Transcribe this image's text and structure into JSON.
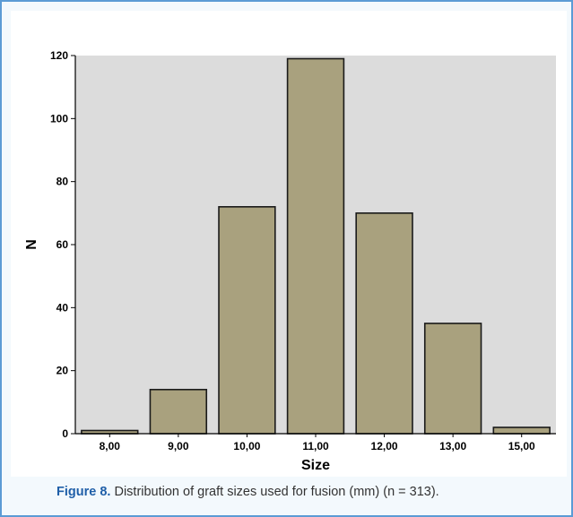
{
  "chart_data": {
    "type": "bar",
    "categories": [
      "8,00",
      "9,00",
      "10,00",
      "11,00",
      "12,00",
      "13,00",
      "15,00"
    ],
    "values": [
      1,
      14,
      72,
      119,
      70,
      35,
      2
    ],
    "xlabel": "Size",
    "ylabel": "N",
    "ylim": [
      0,
      120
    ],
    "yticks": [
      0,
      20,
      40,
      60,
      80,
      100,
      120
    ],
    "grid": false,
    "colors": {
      "plot_background": "#dcdcdc",
      "bar_fill": "#a9a17e",
      "bar_stroke": "#1a1a1a",
      "axis": "#000000"
    }
  },
  "caption": {
    "label": "Figure 8.",
    "text": "Distribution of graft sizes used for fusion (mm) (n = 313)."
  },
  "colors": {
    "frame_border": "#5b9bd5",
    "frame_background": "#f3f9fd",
    "caption_label": "#1f5fa8"
  }
}
